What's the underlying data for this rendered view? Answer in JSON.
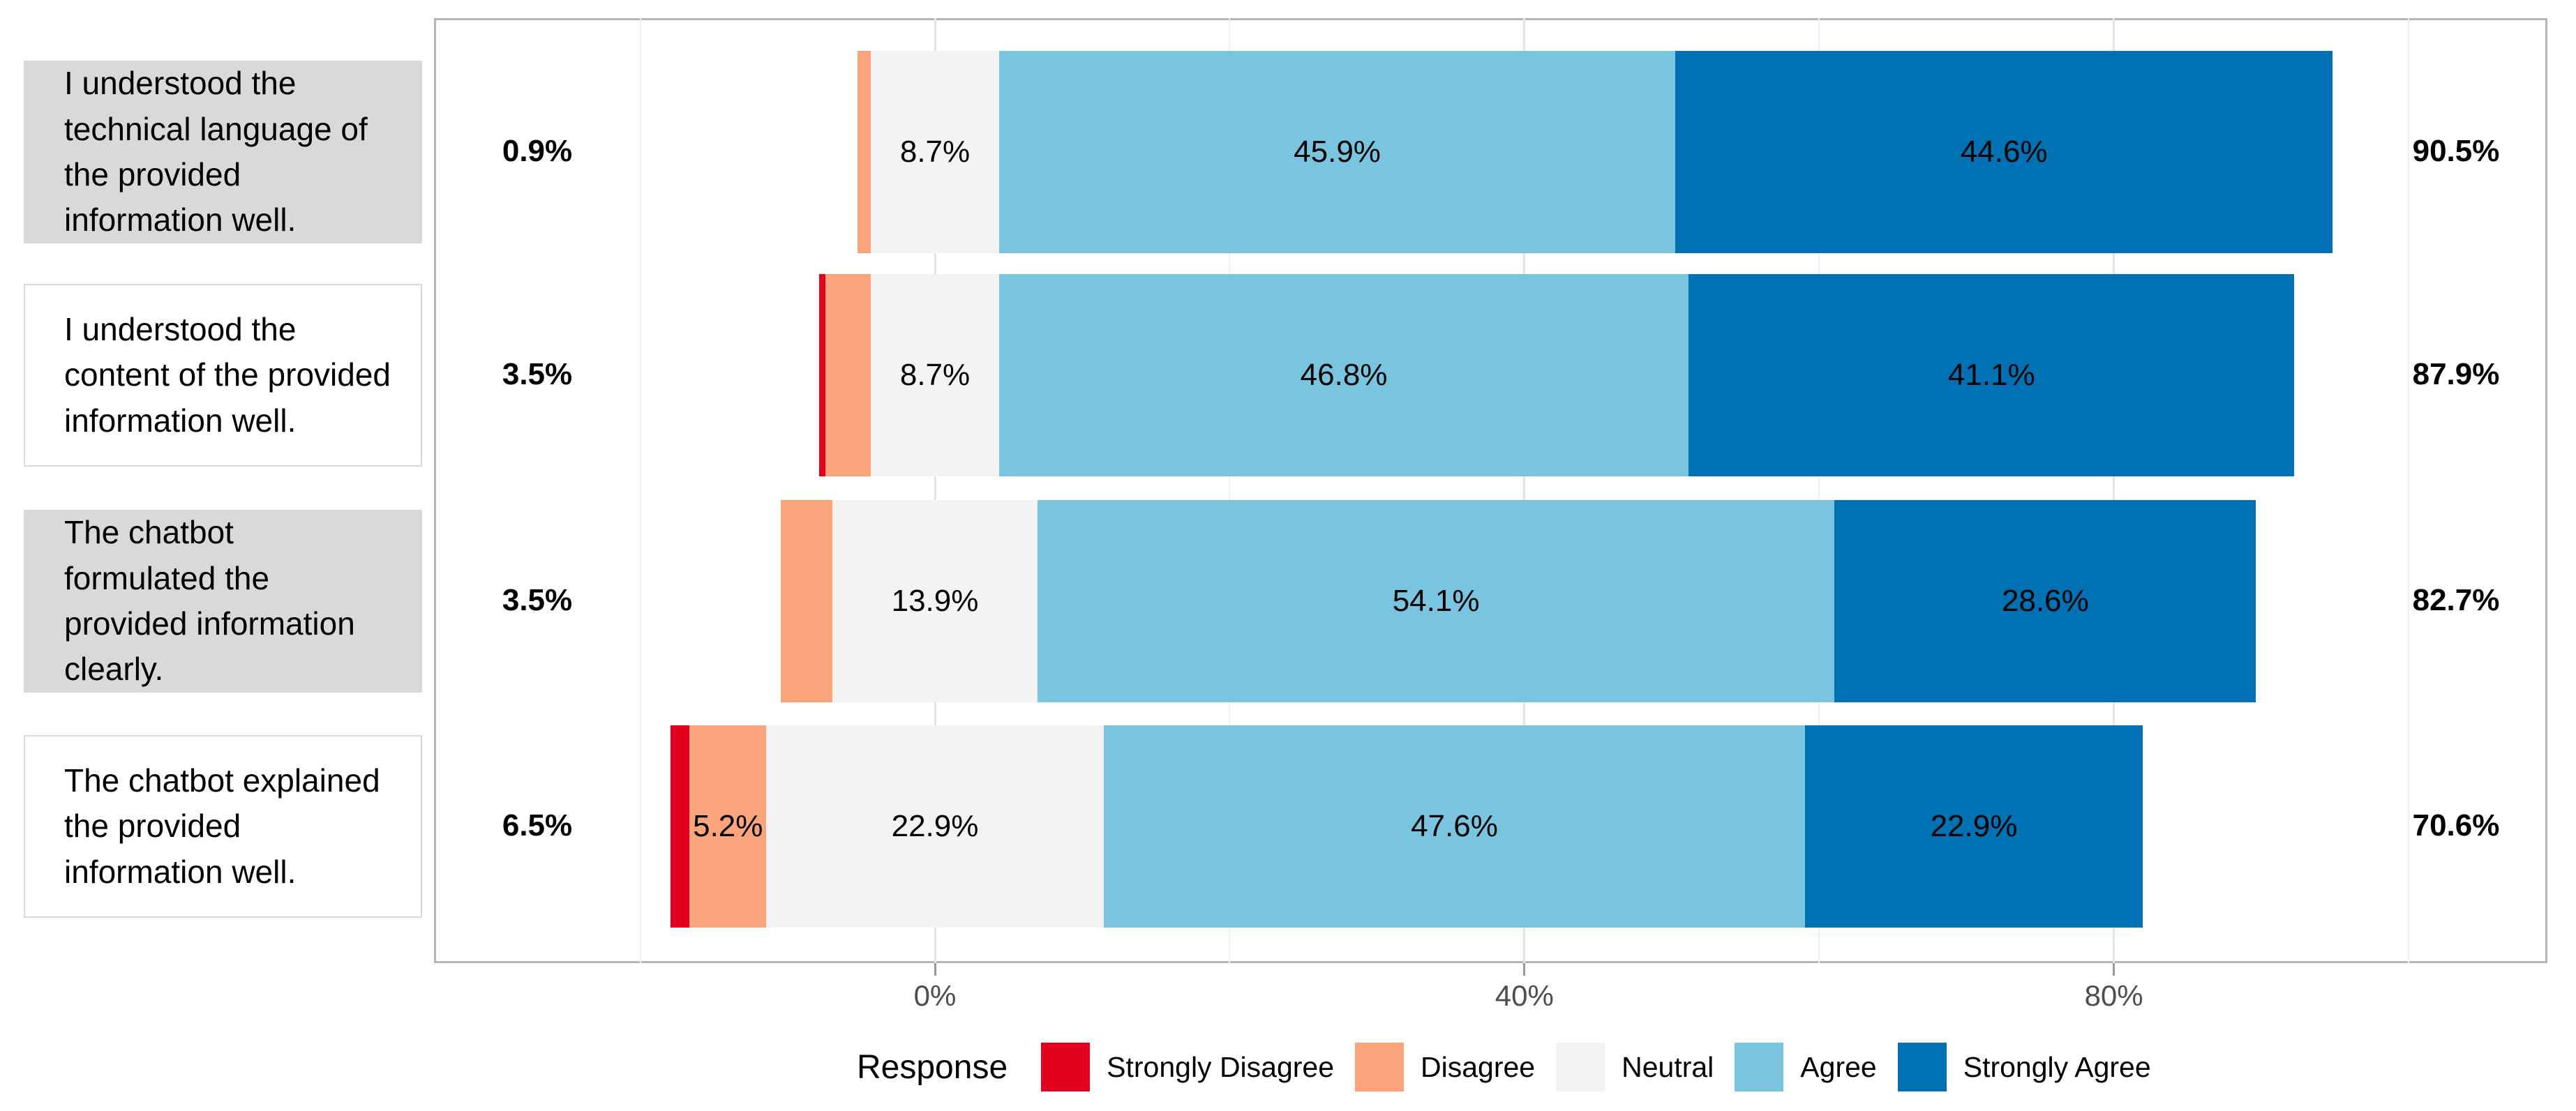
{
  "figure": {
    "background_color": "#ffffff",
    "panel_border_color": "#b5b5b5"
  },
  "chart_data": {
    "type": "diverging_stacked_bar",
    "title": "",
    "orientation": "horizontal",
    "neutral_centered_on_zero": true,
    "x_axis": {
      "unit": "percent",
      "tick_labels": [
        "0%",
        "40%",
        "80%"
      ],
      "tick_values": [
        0,
        40,
        80
      ],
      "minor_gridline_values": [
        -20,
        20,
        60,
        100
      ],
      "grid": true
    },
    "legend": {
      "title": "Response",
      "position": "bottom",
      "items": [
        {
          "key": "strongly_disagree",
          "label": "Strongly Disagree",
          "color": "#e2001e"
        },
        {
          "key": "disagree",
          "label": "Disagree",
          "color": "#fba47c"
        },
        {
          "key": "neutral",
          "label": "Neutral",
          "color": "#f3f3f3"
        },
        {
          "key": "agree",
          "label": "Agree",
          "color": "#79c5e0"
        },
        {
          "key": "strongly_agree",
          "label": "Strongly Agree",
          "color": "#0071b2"
        }
      ]
    },
    "response_levels": [
      "Strongly Disagree",
      "Disagree",
      "Neutral",
      "Agree",
      "Strongly Agree"
    ],
    "rows": [
      {
        "question": "I understood the technical language of the provided information well.",
        "shaded_label_box": true,
        "left_total": "0.9%",
        "right_total": "90.5%",
        "values": {
          "strongly_disagree": 0,
          "disagree": 0.9,
          "neutral": 8.7,
          "agree": 45.9,
          "strongly_agree": 44.6
        },
        "segment_labels": {
          "strongly_disagree": "",
          "disagree": "",
          "neutral": "8.7%",
          "agree": "45.9%",
          "strongly_agree": "44.6%"
        }
      },
      {
        "question": "I understood the content of the provided information well.",
        "shaded_label_box": false,
        "left_total": "3.5%",
        "right_total": "87.9%",
        "values": {
          "strongly_disagree": 0.4,
          "disagree": 3.1,
          "neutral": 8.7,
          "agree": 46.8,
          "strongly_agree": 41.1
        },
        "segment_labels": {
          "strongly_disagree": "",
          "disagree": "",
          "neutral": "8.7%",
          "agree": "46.8%",
          "strongly_agree": "41.1%"
        }
      },
      {
        "question": "The chatbot formulated the provided information clearly.",
        "shaded_label_box": true,
        "left_total": "3.5%",
        "right_total": "82.7%",
        "values": {
          "strongly_disagree": 0,
          "disagree": 3.5,
          "neutral": 13.9,
          "agree": 54.1,
          "strongly_agree": 28.6
        },
        "segment_labels": {
          "strongly_disagree": "",
          "disagree": "",
          "neutral": "13.9%",
          "agree": "54.1%",
          "strongly_agree": "28.6%"
        }
      },
      {
        "question": "The chatbot explained the provided information well.",
        "shaded_label_box": false,
        "left_total": "6.5%",
        "right_total": "70.6%",
        "values": {
          "strongly_disagree": 1.3,
          "disagree": 5.2,
          "neutral": 22.9,
          "agree": 47.6,
          "strongly_agree": 22.9
        },
        "segment_labels": {
          "strongly_disagree": "",
          "disagree": "5.2%",
          "neutral": "22.9%",
          "agree": "47.6%",
          "strongly_agree": "22.9%"
        }
      }
    ]
  }
}
